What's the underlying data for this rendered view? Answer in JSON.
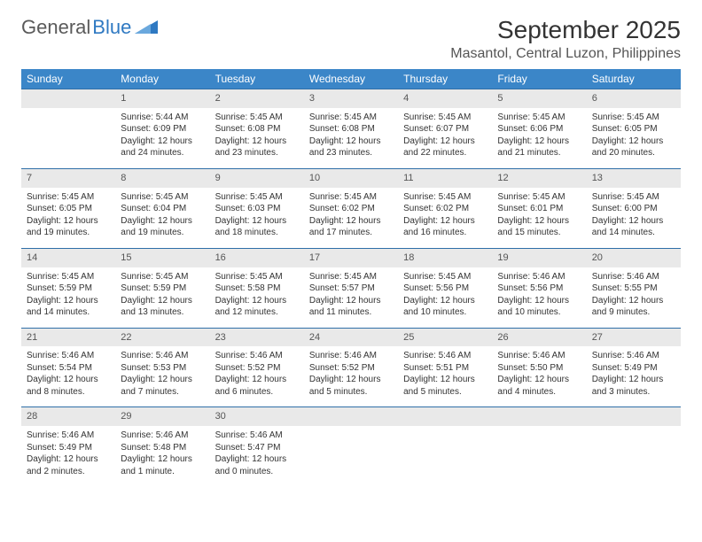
{
  "brand": {
    "name1": "General",
    "name2": "Blue"
  },
  "title": "September 2025",
  "location": "Masantol, Central Luzon, Philippines",
  "styling": {
    "header_bg": "#3b86c8",
    "header_text": "#ffffff",
    "daynum_bg": "#e9e9e9",
    "rule_color": "#2f6fa8",
    "body_text": "#333333",
    "title_fontsize": 28,
    "location_fontsize": 16,
    "dayheader_fontsize": 12,
    "cell_fontsize": 10,
    "page_bg": "#ffffff",
    "columns": 7,
    "type": "calendar-table"
  },
  "dayHeaders": [
    "Sunday",
    "Monday",
    "Tuesday",
    "Wednesday",
    "Thursday",
    "Friday",
    "Saturday"
  ],
  "weeks": [
    [
      null,
      {
        "n": "1",
        "sr": "Sunrise: 5:44 AM",
        "ss": "Sunset: 6:09 PM",
        "d1": "Daylight: 12 hours",
        "d2": "and 24 minutes."
      },
      {
        "n": "2",
        "sr": "Sunrise: 5:45 AM",
        "ss": "Sunset: 6:08 PM",
        "d1": "Daylight: 12 hours",
        "d2": "and 23 minutes."
      },
      {
        "n": "3",
        "sr": "Sunrise: 5:45 AM",
        "ss": "Sunset: 6:08 PM",
        "d1": "Daylight: 12 hours",
        "d2": "and 23 minutes."
      },
      {
        "n": "4",
        "sr": "Sunrise: 5:45 AM",
        "ss": "Sunset: 6:07 PM",
        "d1": "Daylight: 12 hours",
        "d2": "and 22 minutes."
      },
      {
        "n": "5",
        "sr": "Sunrise: 5:45 AM",
        "ss": "Sunset: 6:06 PM",
        "d1": "Daylight: 12 hours",
        "d2": "and 21 minutes."
      },
      {
        "n": "6",
        "sr": "Sunrise: 5:45 AM",
        "ss": "Sunset: 6:05 PM",
        "d1": "Daylight: 12 hours",
        "d2": "and 20 minutes."
      }
    ],
    [
      {
        "n": "7",
        "sr": "Sunrise: 5:45 AM",
        "ss": "Sunset: 6:05 PM",
        "d1": "Daylight: 12 hours",
        "d2": "and 19 minutes."
      },
      {
        "n": "8",
        "sr": "Sunrise: 5:45 AM",
        "ss": "Sunset: 6:04 PM",
        "d1": "Daylight: 12 hours",
        "d2": "and 19 minutes."
      },
      {
        "n": "9",
        "sr": "Sunrise: 5:45 AM",
        "ss": "Sunset: 6:03 PM",
        "d1": "Daylight: 12 hours",
        "d2": "and 18 minutes."
      },
      {
        "n": "10",
        "sr": "Sunrise: 5:45 AM",
        "ss": "Sunset: 6:02 PM",
        "d1": "Daylight: 12 hours",
        "d2": "and 17 minutes."
      },
      {
        "n": "11",
        "sr": "Sunrise: 5:45 AM",
        "ss": "Sunset: 6:02 PM",
        "d1": "Daylight: 12 hours",
        "d2": "and 16 minutes."
      },
      {
        "n": "12",
        "sr": "Sunrise: 5:45 AM",
        "ss": "Sunset: 6:01 PM",
        "d1": "Daylight: 12 hours",
        "d2": "and 15 minutes."
      },
      {
        "n": "13",
        "sr": "Sunrise: 5:45 AM",
        "ss": "Sunset: 6:00 PM",
        "d1": "Daylight: 12 hours",
        "d2": "and 14 minutes."
      }
    ],
    [
      {
        "n": "14",
        "sr": "Sunrise: 5:45 AM",
        "ss": "Sunset: 5:59 PM",
        "d1": "Daylight: 12 hours",
        "d2": "and 14 minutes."
      },
      {
        "n": "15",
        "sr": "Sunrise: 5:45 AM",
        "ss": "Sunset: 5:59 PM",
        "d1": "Daylight: 12 hours",
        "d2": "and 13 minutes."
      },
      {
        "n": "16",
        "sr": "Sunrise: 5:45 AM",
        "ss": "Sunset: 5:58 PM",
        "d1": "Daylight: 12 hours",
        "d2": "and 12 minutes."
      },
      {
        "n": "17",
        "sr": "Sunrise: 5:45 AM",
        "ss": "Sunset: 5:57 PM",
        "d1": "Daylight: 12 hours",
        "d2": "and 11 minutes."
      },
      {
        "n": "18",
        "sr": "Sunrise: 5:45 AM",
        "ss": "Sunset: 5:56 PM",
        "d1": "Daylight: 12 hours",
        "d2": "and 10 minutes."
      },
      {
        "n": "19",
        "sr": "Sunrise: 5:46 AM",
        "ss": "Sunset: 5:56 PM",
        "d1": "Daylight: 12 hours",
        "d2": "and 10 minutes."
      },
      {
        "n": "20",
        "sr": "Sunrise: 5:46 AM",
        "ss": "Sunset: 5:55 PM",
        "d1": "Daylight: 12 hours",
        "d2": "and 9 minutes."
      }
    ],
    [
      {
        "n": "21",
        "sr": "Sunrise: 5:46 AM",
        "ss": "Sunset: 5:54 PM",
        "d1": "Daylight: 12 hours",
        "d2": "and 8 minutes."
      },
      {
        "n": "22",
        "sr": "Sunrise: 5:46 AM",
        "ss": "Sunset: 5:53 PM",
        "d1": "Daylight: 12 hours",
        "d2": "and 7 minutes."
      },
      {
        "n": "23",
        "sr": "Sunrise: 5:46 AM",
        "ss": "Sunset: 5:52 PM",
        "d1": "Daylight: 12 hours",
        "d2": "and 6 minutes."
      },
      {
        "n": "24",
        "sr": "Sunrise: 5:46 AM",
        "ss": "Sunset: 5:52 PM",
        "d1": "Daylight: 12 hours",
        "d2": "and 5 minutes."
      },
      {
        "n": "25",
        "sr": "Sunrise: 5:46 AM",
        "ss": "Sunset: 5:51 PM",
        "d1": "Daylight: 12 hours",
        "d2": "and 5 minutes."
      },
      {
        "n": "26",
        "sr": "Sunrise: 5:46 AM",
        "ss": "Sunset: 5:50 PM",
        "d1": "Daylight: 12 hours",
        "d2": "and 4 minutes."
      },
      {
        "n": "27",
        "sr": "Sunrise: 5:46 AM",
        "ss": "Sunset: 5:49 PM",
        "d1": "Daylight: 12 hours",
        "d2": "and 3 minutes."
      }
    ],
    [
      {
        "n": "28",
        "sr": "Sunrise: 5:46 AM",
        "ss": "Sunset: 5:49 PM",
        "d1": "Daylight: 12 hours",
        "d2": "and 2 minutes."
      },
      {
        "n": "29",
        "sr": "Sunrise: 5:46 AM",
        "ss": "Sunset: 5:48 PM",
        "d1": "Daylight: 12 hours",
        "d2": "and 1 minute."
      },
      {
        "n": "30",
        "sr": "Sunrise: 5:46 AM",
        "ss": "Sunset: 5:47 PM",
        "d1": "Daylight: 12 hours",
        "d2": "and 0 minutes."
      },
      null,
      null,
      null,
      null
    ]
  ]
}
